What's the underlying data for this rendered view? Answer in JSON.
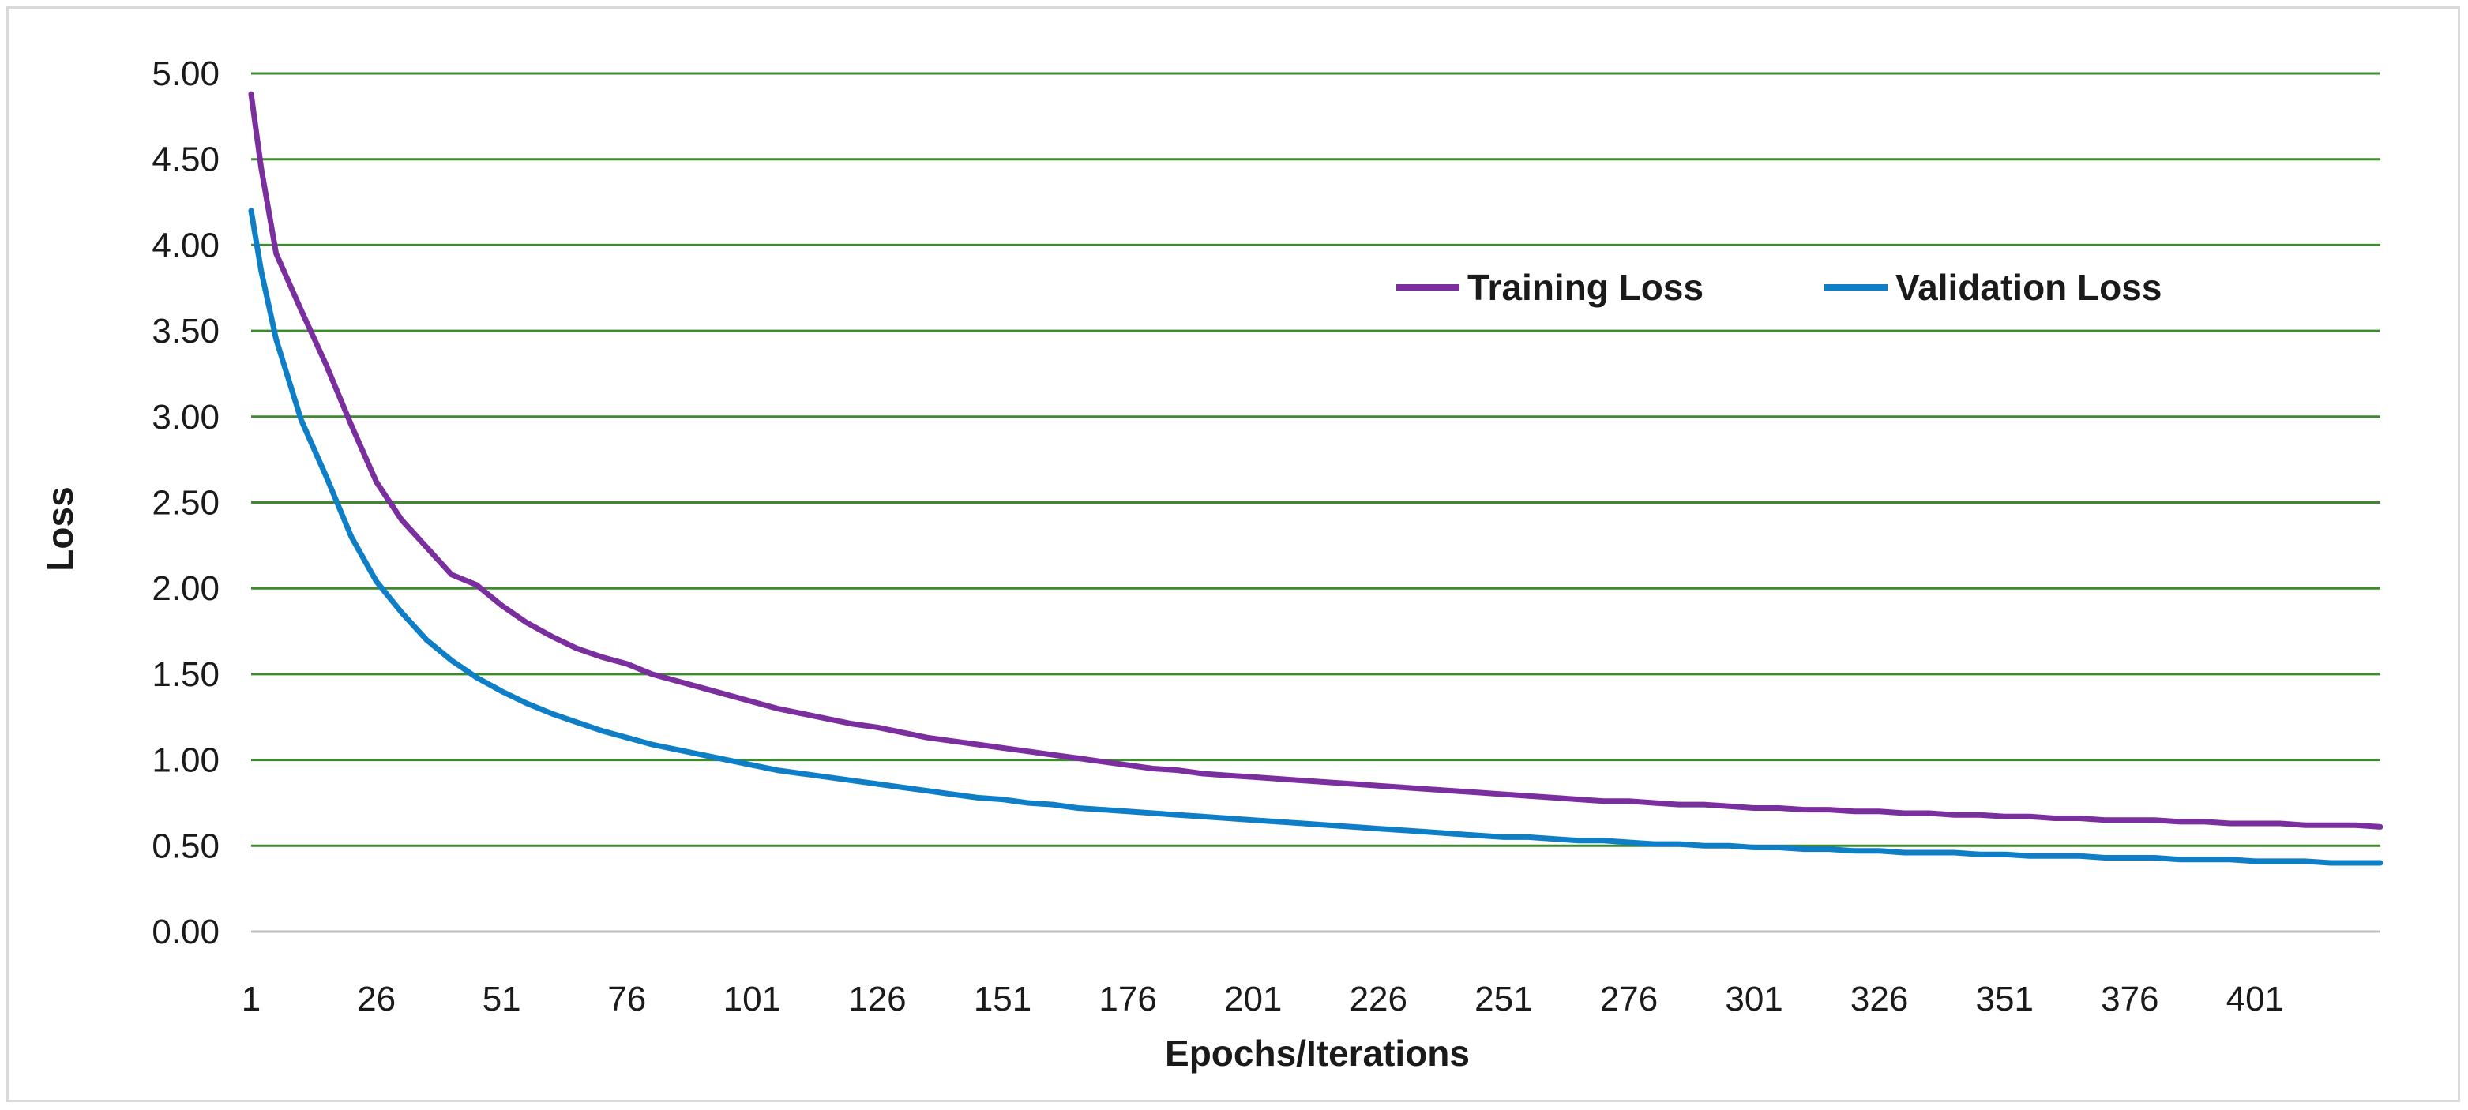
{
  "chart_data": {
    "type": "line",
    "title": "",
    "xlabel": "Epochs/Iterations",
    "ylabel": "Loss",
    "xlim": [
      1,
      426
    ],
    "ylim": [
      0,
      5
    ],
    "y_ticks": [
      "0.00",
      "0.50",
      "1.00",
      "1.50",
      "2.00",
      "2.50",
      "3.00",
      "3.50",
      "4.00",
      "4.50",
      "5.00"
    ],
    "x_ticks": [
      "1",
      "26",
      "51",
      "76",
      "101",
      "126",
      "151",
      "176",
      "201",
      "226",
      "251",
      "276",
      "301",
      "326",
      "351",
      "376",
      "401"
    ],
    "grid": "horizontal",
    "legend": "upper-right",
    "colors": {
      "training": "#7b2f9e",
      "validation": "#0e7fc7",
      "grid": "#3d8a2f",
      "axis": "#bfbfbf"
    },
    "series": [
      {
        "name": "Training Loss",
        "x": [
          1,
          3,
          6,
          11,
          16,
          21,
          26,
          31,
          36,
          41,
          46,
          51,
          56,
          61,
          66,
          71,
          76,
          81,
          86,
          91,
          96,
          101,
          106,
          111,
          116,
          121,
          126,
          131,
          136,
          141,
          146,
          151,
          156,
          161,
          166,
          171,
          176,
          181,
          186,
          191,
          196,
          201,
          206,
          211,
          216,
          221,
          226,
          231,
          236,
          241,
          246,
          251,
          256,
          261,
          266,
          271,
          276,
          281,
          286,
          291,
          296,
          301,
          306,
          311,
          316,
          321,
          326,
          331,
          336,
          341,
          346,
          351,
          356,
          361,
          366,
          371,
          376,
          381,
          386,
          391,
          396,
          401,
          406,
          411,
          416,
          421,
          426
        ],
        "values": [
          4.88,
          4.45,
          3.95,
          3.62,
          3.3,
          2.95,
          2.62,
          2.4,
          2.24,
          2.08,
          2.02,
          1.9,
          1.8,
          1.72,
          1.65,
          1.6,
          1.56,
          1.5,
          1.46,
          1.42,
          1.38,
          1.34,
          1.3,
          1.27,
          1.24,
          1.21,
          1.19,
          1.16,
          1.13,
          1.11,
          1.09,
          1.07,
          1.05,
          1.03,
          1.01,
          0.99,
          0.97,
          0.95,
          0.94,
          0.92,
          0.91,
          0.9,
          0.89,
          0.88,
          0.87,
          0.86,
          0.85,
          0.84,
          0.83,
          0.82,
          0.81,
          0.8,
          0.79,
          0.78,
          0.77,
          0.76,
          0.76,
          0.75,
          0.74,
          0.74,
          0.73,
          0.72,
          0.72,
          0.71,
          0.71,
          0.7,
          0.7,
          0.69,
          0.69,
          0.68,
          0.68,
          0.67,
          0.67,
          0.66,
          0.66,
          0.65,
          0.65,
          0.65,
          0.64,
          0.64,
          0.63,
          0.63,
          0.63,
          0.62,
          0.62,
          0.62,
          0.61
        ]
      },
      {
        "name": "Validation Loss",
        "x": [
          1,
          3,
          6,
          11,
          16,
          21,
          26,
          31,
          36,
          41,
          46,
          51,
          56,
          61,
          66,
          71,
          76,
          81,
          86,
          91,
          96,
          101,
          106,
          111,
          116,
          121,
          126,
          131,
          136,
          141,
          146,
          151,
          156,
          161,
          166,
          171,
          176,
          181,
          186,
          191,
          196,
          201,
          206,
          211,
          216,
          221,
          226,
          231,
          236,
          241,
          246,
          251,
          256,
          261,
          266,
          271,
          276,
          281,
          286,
          291,
          296,
          301,
          306,
          311,
          316,
          321,
          326,
          331,
          336,
          341,
          346,
          351,
          356,
          361,
          366,
          371,
          376,
          381,
          386,
          391,
          396,
          401,
          406,
          411,
          416,
          421,
          426
        ],
        "values": [
          4.2,
          3.85,
          3.45,
          2.98,
          2.65,
          2.3,
          2.04,
          1.86,
          1.7,
          1.58,
          1.48,
          1.4,
          1.33,
          1.27,
          1.22,
          1.17,
          1.13,
          1.09,
          1.06,
          1.03,
          1.0,
          0.97,
          0.94,
          0.92,
          0.9,
          0.88,
          0.86,
          0.84,
          0.82,
          0.8,
          0.78,
          0.77,
          0.75,
          0.74,
          0.72,
          0.71,
          0.7,
          0.69,
          0.68,
          0.67,
          0.66,
          0.65,
          0.64,
          0.63,
          0.62,
          0.61,
          0.6,
          0.59,
          0.58,
          0.57,
          0.56,
          0.55,
          0.55,
          0.54,
          0.53,
          0.53,
          0.52,
          0.51,
          0.51,
          0.5,
          0.5,
          0.49,
          0.49,
          0.48,
          0.48,
          0.47,
          0.47,
          0.46,
          0.46,
          0.46,
          0.45,
          0.45,
          0.44,
          0.44,
          0.44,
          0.43,
          0.43,
          0.43,
          0.42,
          0.42,
          0.42,
          0.41,
          0.41,
          0.41,
          0.4,
          0.4,
          0.4
        ]
      }
    ]
  }
}
